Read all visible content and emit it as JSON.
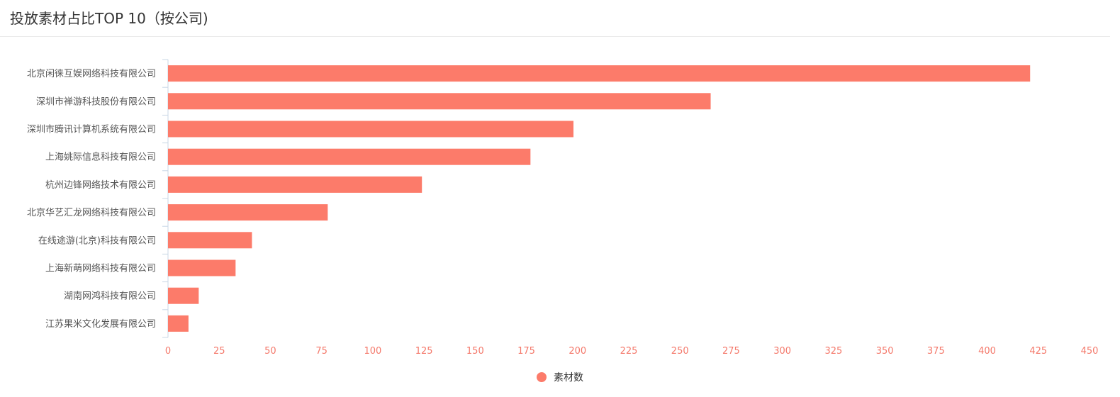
{
  "chart_data": {
    "type": "bar",
    "orientation": "horizontal",
    "title": "投放素材占比TOP 10（按公司)",
    "categories": [
      "北京闲徕互娱网络科技有限公司",
      "深圳市禅游科技股份有限公司",
      "深圳市腾讯计算机系统有限公司",
      "上海姚际信息科技有限公司",
      "杭州边锋网络技术有限公司",
      "北京华艺汇龙网络科技有限公司",
      "在线途游(北京)科技有限公司",
      "上海新萌网络科技有限公司",
      "湖南网鸿科技有限公司",
      "江苏果米文化发展有限公司"
    ],
    "series": [
      {
        "name": "素材数",
        "values": [
          421,
          265,
          198,
          177,
          124,
          78,
          41,
          33,
          15,
          10
        ]
      }
    ],
    "xlim": [
      0,
      450
    ],
    "xticks": [
      "0",
      "25",
      "50",
      "75",
      "100",
      "125",
      "150",
      "175",
      "200",
      "225",
      "250",
      "275",
      "300",
      "325",
      "350",
      "375",
      "400",
      "425",
      "450"
    ],
    "grid": false,
    "legend_position": "bottom-center",
    "colors": {
      "bar": "#fc7b6a",
      "tick_text": "#f4786a",
      "axis": "#c8d7e6"
    }
  }
}
